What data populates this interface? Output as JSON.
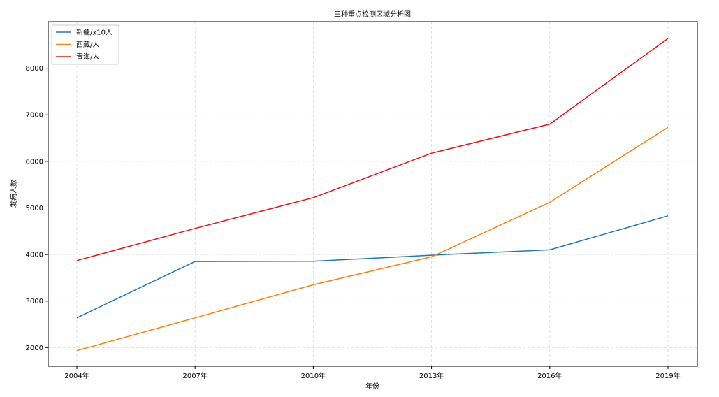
{
  "chart_data": {
    "type": "line",
    "title": "三种重点检测区域分析图",
    "xlabel": "年份",
    "ylabel": "发病人数",
    "categories": [
      "2004年",
      "2007年",
      "2010年",
      "2013年",
      "2016年",
      "2019年"
    ],
    "series": [
      {
        "name": "新疆/x10人",
        "color": "#1f77b4",
        "values": [
          2640,
          3850,
          3855,
          3985,
          4100,
          4830
        ]
      },
      {
        "name": "西藏/人",
        "color": "#ff7f0e",
        "values": [
          1935,
          2640,
          3350,
          3950,
          5120,
          6730
        ]
      },
      {
        "name": "青海/人",
        "color": "#ee1111",
        "values": [
          3870,
          4560,
          5220,
          6175,
          6800,
          8640
        ]
      }
    ],
    "yticks": [
      2000,
      3000,
      4000,
      5000,
      6000,
      7000,
      8000
    ],
    "ylim": [
      1600,
      9000
    ],
    "grid": true,
    "legend": "top-left"
  }
}
